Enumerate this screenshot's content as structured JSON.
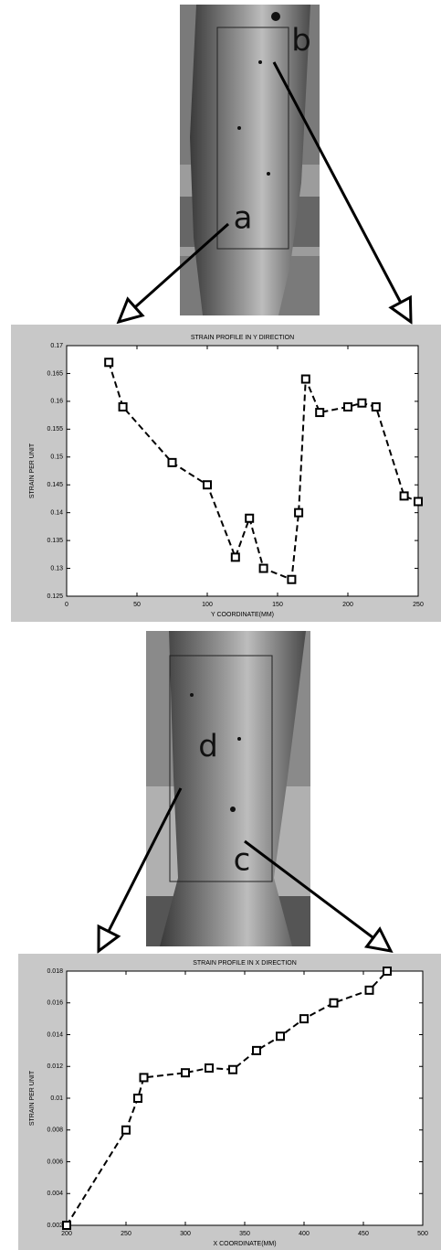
{
  "figure_labels": [
    "b",
    "a",
    "d",
    "c"
  ],
  "chart_data": [
    {
      "type": "line",
      "title": "STRAIN PROFILE IN Y DIRECTION",
      "x_label": "Y COORDINATE(MM)",
      "y_label": "STRAIN PER UNIT",
      "x": [
        30,
        40,
        75,
        100,
        120,
        130,
        140,
        160,
        165,
        170,
        180,
        200,
        210,
        220,
        240,
        250
      ],
      "series": [
        {
          "color": "#000000",
          "values": [
            0.167,
            0.159,
            0.149,
            0.145,
            0.132,
            0.139,
            0.13,
            0.128,
            0.14,
            0.164,
            0.158,
            0.159,
            0.1597,
            0.159,
            0.143,
            0.142
          ]
        }
      ],
      "xlim": [
        0,
        250
      ],
      "xticks": [
        0,
        50,
        100,
        150,
        200,
        250
      ],
      "ylim": [
        0.125,
        0.17
      ],
      "yticks": [
        0.125,
        0.13,
        0.135,
        0.14,
        0.145,
        0.15,
        0.155,
        0.16,
        0.165,
        0.17
      ]
    },
    {
      "type": "line",
      "title": "STRAIN PROFILE IN X DIRECTION",
      "x_label": "X COORDINATE(MM)",
      "y_label": "STRAIN PER UNIT",
      "x": [
        200,
        250,
        260,
        265,
        300,
        320,
        340,
        360,
        380,
        400,
        425,
        455,
        470
      ],
      "series": [
        {
          "color": "#000000",
          "values": [
            0.002,
            0.008,
            0.01,
            0.0113,
            0.0116,
            0.0119,
            0.0118,
            0.013,
            0.0139,
            0.015,
            0.016,
            0.0168,
            0.018
          ]
        }
      ],
      "xlim": [
        200,
        500
      ],
      "xticks": [
        200,
        250,
        300,
        350,
        400,
        450,
        500
      ],
      "ylim": [
        0.002,
        0.018
      ],
      "yticks": [
        0.002,
        0.004,
        0.006,
        0.008,
        0.01,
        0.012,
        0.014,
        0.016,
        0.018
      ]
    }
  ]
}
